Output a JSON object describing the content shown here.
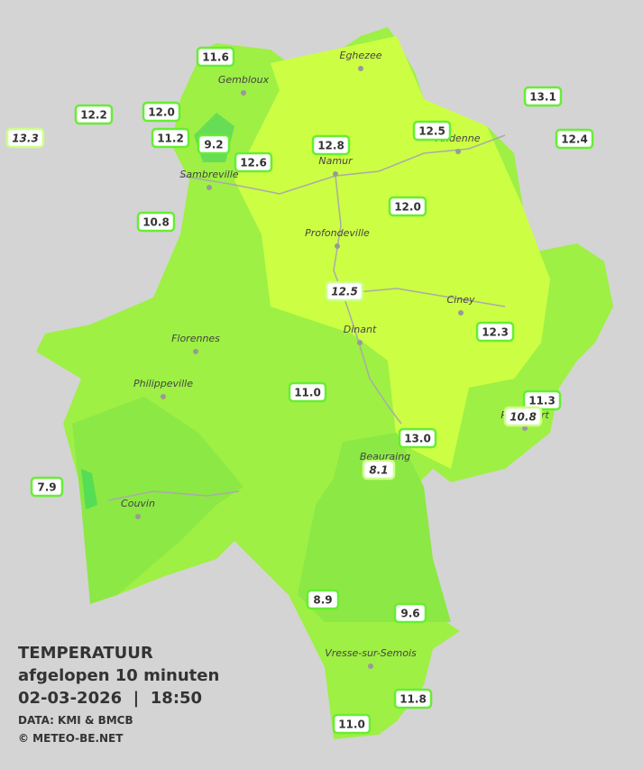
{
  "header": {
    "title": "TEMPERATUUR",
    "subtitle": "afgelopen 10 minuten",
    "datetime": "02-03-2026  |  18:50",
    "source": "DATA: KMI & BMCB",
    "credit": "© METEO-BE.NET"
  },
  "cities": [
    "Eghezee",
    "Gembloux",
    "Andenne",
    "Namur",
    "Sambreville",
    "Profondeville",
    "Ciney",
    "Florennes",
    "Dinant",
    "Philippeville",
    "Rochefort",
    "Beauraing",
    "Couvin",
    "Vresse-sur-Semois"
  ],
  "stations": [
    {
      "label": "11.6",
      "italic": false
    },
    {
      "label": "12.2",
      "italic": false
    },
    {
      "label": "12.0",
      "italic": false
    },
    {
      "label": "13.3",
      "italic": true
    },
    {
      "label": "11.2",
      "italic": false
    },
    {
      "label": "9.2",
      "italic": false
    },
    {
      "label": "12.6",
      "italic": false
    },
    {
      "label": "12.8",
      "italic": false
    },
    {
      "label": "12.5",
      "italic": false
    },
    {
      "label": "13.1",
      "italic": false
    },
    {
      "label": "12.4",
      "italic": false
    },
    {
      "label": "10.8",
      "italic": false
    },
    {
      "label": "12.0",
      "italic": false
    },
    {
      "label": "12.5",
      "italic": true
    },
    {
      "label": "12.3",
      "italic": false
    },
    {
      "label": "11.0",
      "italic": false
    },
    {
      "label": "11.3",
      "italic": false
    },
    {
      "label": "10.8",
      "italic": true
    },
    {
      "label": "13.0",
      "italic": false
    },
    {
      "label": "8.1",
      "italic": true
    },
    {
      "label": "7.9",
      "italic": false
    },
    {
      "label": "8.9",
      "italic": false
    },
    {
      "label": "9.6",
      "italic": false
    },
    {
      "label": "11.8",
      "italic": false
    },
    {
      "label": "11.0",
      "italic": false
    }
  ]
}
